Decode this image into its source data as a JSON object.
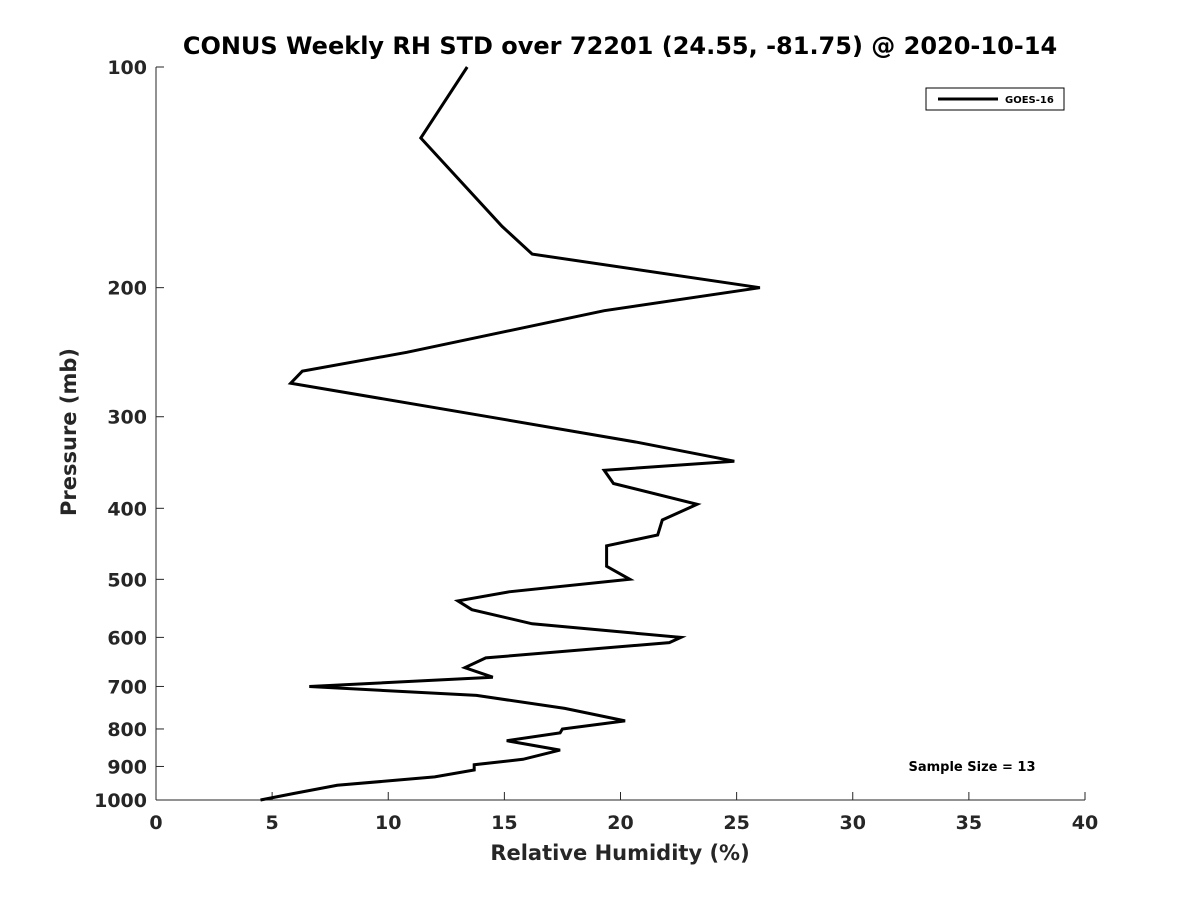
{
  "chart_data": {
    "type": "line",
    "title": "CONUS Weekly RH STD over 72201 (24.55, -81.75) @ 2020-10-14",
    "xlabel": "Relative Humidity (%)",
    "ylabel": "Pressure (mb)",
    "xlim": [
      0,
      40
    ],
    "ylim": [
      100,
      1000
    ],
    "yscale": "log",
    "y_reversed": true,
    "xticks": [
      "0",
      "5",
      "10",
      "15",
      "20",
      "25",
      "30",
      "35",
      "40"
    ],
    "yticks": [
      "100",
      "200",
      "300",
      "400",
      "500",
      "600",
      "700",
      "800",
      "900",
      "1000"
    ],
    "grid": false,
    "legend_position": "top-right",
    "annotation": "Sample Size = 13",
    "series": [
      {
        "name": "GOES-16",
        "color": "#000000",
        "x": [
          13.4,
          11.4,
          14.9,
          16.2,
          26.0,
          19.3,
          10.8,
          6.3,
          5.8,
          14.3,
          20.7,
          24.9,
          19.3,
          19.7,
          23.3,
          21.8,
          21.6,
          19.4,
          19.4,
          20.4,
          15.2,
          13.0,
          13.6,
          16.2,
          22.6,
          22.1,
          14.2,
          13.3,
          14.5,
          6.6,
          13.8,
          17.6,
          20.2,
          17.5,
          17.4,
          15.1,
          17.4,
          15.8,
          13.7,
          13.7,
          12.0,
          7.8,
          5.9,
          4.5
        ],
        "y": [
          100,
          125,
          165,
          180,
          200,
          215,
          245,
          260,
          270,
          300,
          325,
          345,
          355,
          370,
          395,
          415,
          435,
          450,
          480,
          500,
          520,
          535,
          550,
          575,
          600,
          610,
          640,
          660,
          680,
          700,
          720,
          750,
          780,
          800,
          810,
          830,
          855,
          880,
          895,
          910,
          930,
          955,
          980,
          1000
        ]
      }
    ]
  }
}
